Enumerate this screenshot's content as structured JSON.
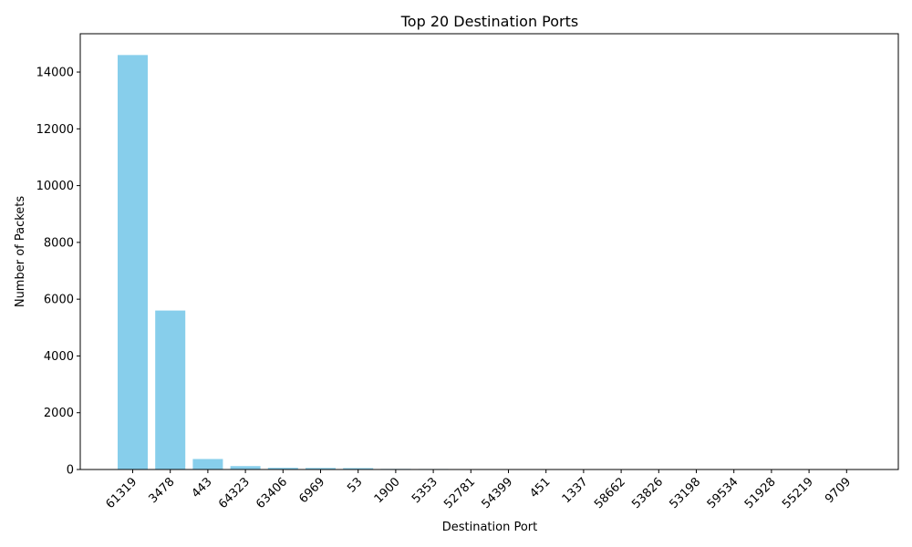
{
  "chart_data": {
    "type": "bar",
    "title": "Top 20 Destination Ports",
    "xlabel": "Destination Port",
    "ylabel": "Number of Packets",
    "categories": [
      "61319",
      "3478",
      "443",
      "64323",
      "63406",
      "6969",
      "53",
      "1900",
      "5353",
      "52781",
      "54399",
      "451",
      "1337",
      "58662",
      "53826",
      "53198",
      "59534",
      "51928",
      "55219",
      "9709"
    ],
    "values": [
      14600,
      5600,
      370,
      120,
      60,
      55,
      50,
      22,
      18,
      16,
      15,
      14,
      13,
      12,
      12,
      11,
      11,
      10,
      10,
      10
    ],
    "yticks": [
      0,
      2000,
      4000,
      6000,
      8000,
      10000,
      12000,
      14000
    ],
    "ylim": [
      0,
      15350
    ],
    "bar_color": "#87ceeb",
    "grid": false,
    "legend": "none"
  }
}
